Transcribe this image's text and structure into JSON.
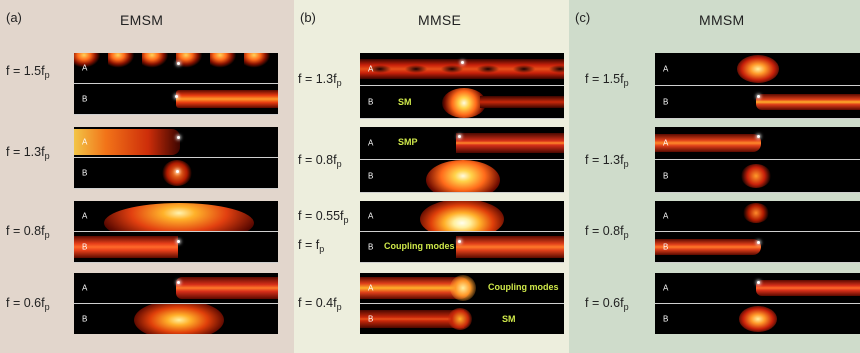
{
  "panels": [
    {
      "letter": "(a)",
      "title": "EMSM",
      "rows": [
        {
          "f": "f = 1.5f",
          "sub": "p"
        },
        {
          "f": "f = 1.3f",
          "sub": "p"
        },
        {
          "f": "f = 0.8f",
          "sub": "p"
        },
        {
          "f": "f = 0.6f",
          "sub": "p"
        }
      ]
    },
    {
      "letter": "(b)",
      "title": "MMSE",
      "rows": [
        {
          "f": "f = 1.3f",
          "sub": "p"
        },
        {
          "f": "f = 0.8f",
          "sub": "p"
        },
        {
          "f": "f = 0.55f",
          "sub": "p"
        },
        {
          "f": "f = f",
          "sub": "p"
        },
        {
          "f": "f = 0.4f",
          "sub": "p"
        }
      ],
      "annotations": {
        "sm1": "SM",
        "smp": "SMP",
        "coupling1": "Coupling modes",
        "coupling2": "Coupling modes",
        "sm2": "SM"
      }
    },
    {
      "letter": "(c)",
      "title": "MMSM",
      "rows": [
        {
          "f": "f = 1.5f",
          "sub": "p"
        },
        {
          "f": "f = 1.3f",
          "sub": "p"
        },
        {
          "f": "f = 0.8f",
          "sub": "p"
        },
        {
          "f": "f = 0.6f",
          "sub": "p"
        }
      ]
    }
  ],
  "region_labels": {
    "a": "A",
    "b": "B"
  },
  "colors": {
    "panel_a_bg": "#e2d6cc",
    "panel_b_bg": "#edeedd",
    "panel_c_bg": "#cfdccb",
    "annotation": "#cfe84a",
    "field_background": "#000000"
  }
}
